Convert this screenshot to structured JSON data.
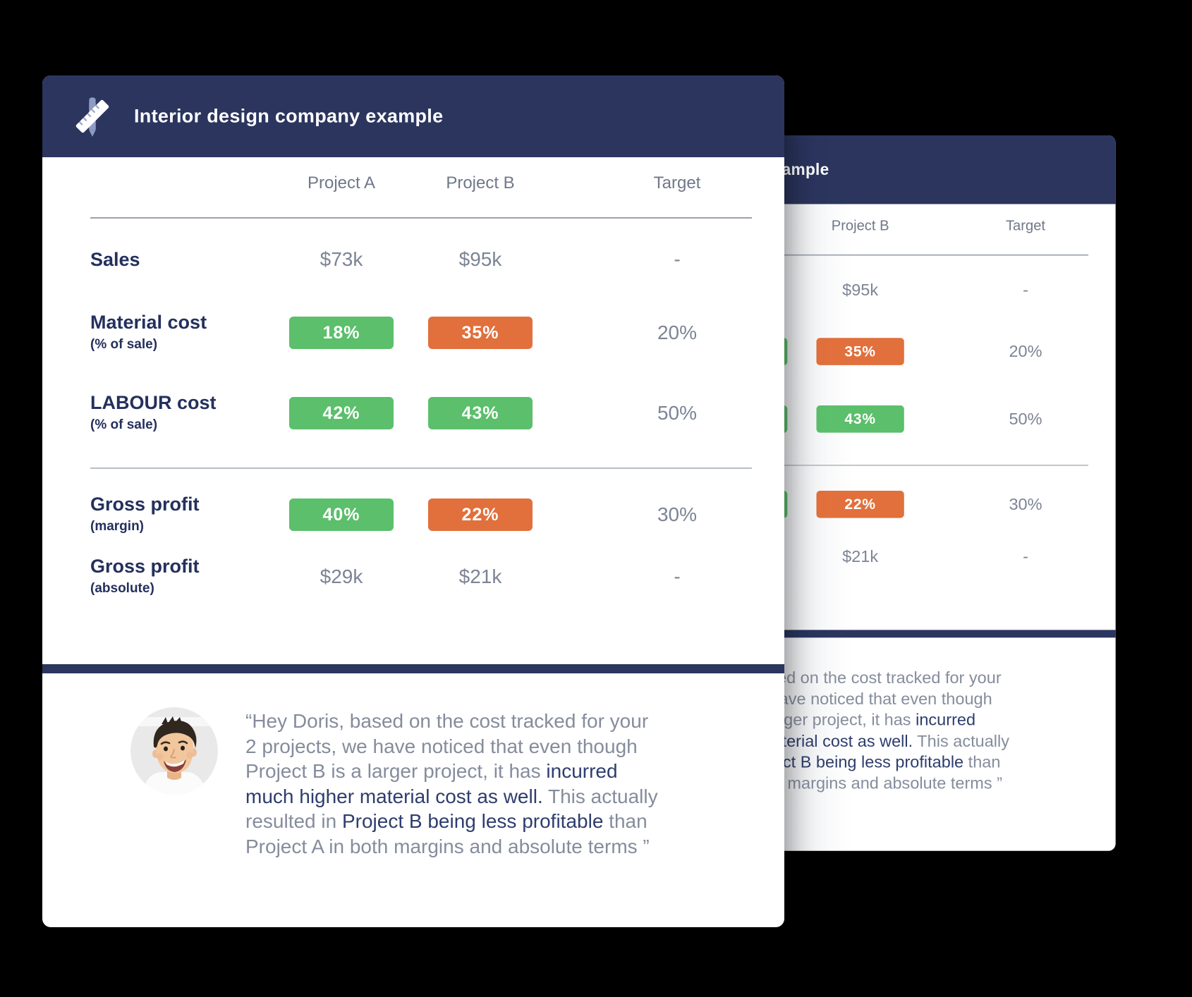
{
  "colors": {
    "page_background": "#000000",
    "header_navy": "#2b355e",
    "label_navy": "#24305d",
    "value_gray": "#7c8495",
    "column_header_gray": "#6f7889",
    "quote_gray": "#858c9c",
    "quote_emphasis_navy": "#2e3d6e",
    "badge_green": "#5bbf6b",
    "badge_orange": "#e1703c",
    "card_background": "#ffffff"
  },
  "card": {
    "title": "Interior design company example",
    "header_icon": "pencil-ruler-icon",
    "columns": [
      "Project A",
      "Project B",
      "Target"
    ],
    "rows": [
      {
        "label": "Sales",
        "sub": "",
        "cells": [
          {
            "t": "$73k"
          },
          {
            "t": "$95k"
          },
          {
            "t": "-"
          }
        ]
      },
      {
        "label": "Material cost",
        "sub": "(% of sale)",
        "cells": [
          {
            "t": "18%",
            "badge": "green"
          },
          {
            "t": "35%",
            "badge": "orange"
          },
          {
            "t": "20%"
          }
        ]
      },
      {
        "label": "LABOUR cost",
        "sub": "(% of sale)",
        "cells": [
          {
            "t": "42%",
            "badge": "green"
          },
          {
            "t": "43%",
            "badge": "green"
          },
          {
            "t": "50%"
          }
        ]
      },
      {
        "label": "Gross profit",
        "sub": "(margin)",
        "cells": [
          {
            "t": "40%",
            "badge": "green"
          },
          {
            "t": "22%",
            "badge": "orange"
          },
          {
            "t": "30%"
          }
        ]
      },
      {
        "label": "Gross profit",
        "sub": "(absolute)",
        "cells": [
          {
            "t": "$29k"
          },
          {
            "t": "$21k"
          },
          {
            "t": "-"
          }
        ]
      }
    ],
    "quote": {
      "avatar": "smiling-man-photo",
      "segments": [
        {
          "text": "“Hey Doris, based on the cost tracked for your 2 projects, we have noticed that even though Project B is a larger project, it has ",
          "em": false
        },
        {
          "text": "incurred much higher material cost as well.",
          "em": true
        },
        {
          "text": " This actually resulted in ",
          "em": false
        },
        {
          "text": "Project B being less profitable",
          "em": true
        },
        {
          "text": " than Project A in both margins and absolute terms ”",
          "em": false
        }
      ]
    }
  }
}
